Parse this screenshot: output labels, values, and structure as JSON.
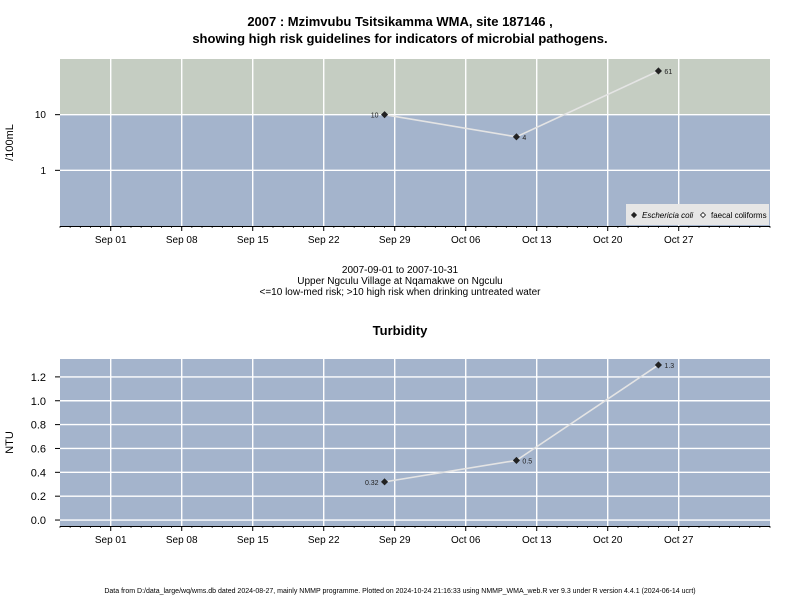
{
  "chart_data": [
    {
      "type": "line",
      "title_line1": "2007 : Mzimvubu Tsitsikamma WMA, site 187146 ,",
      "title_line2": "showing high risk guidelines for indicators of microbial pathogens.",
      "ylabel": "/100mL",
      "yscale": "log",
      "ylim": [
        0.1,
        100
      ],
      "ytick_labels": [
        "1",
        "10"
      ],
      "xlim": [
        "2007-08-27",
        "2007-11-05"
      ],
      "xtick_labels": [
        "Sep 01",
        "Sep 08",
        "Sep 15",
        "Sep 22",
        "Sep 29",
        "Oct 06",
        "Oct 13",
        "Oct 20",
        "Oct 27"
      ],
      "threshold": 10,
      "high_risk_color": "#c5cdc2",
      "low_risk_color": "#a4b4cc",
      "series": [
        {
          "name": "Eschericia coli",
          "marker": "filled-diamond",
          "x": [
            "2007-09-28",
            "2007-10-11",
            "2007-10-25"
          ],
          "y": [
            10,
            4,
            61
          ],
          "labels": [
            "10",
            "4",
            "61"
          ]
        },
        {
          "name": "faecal coliforms",
          "marker": "open-diamond",
          "x": [],
          "y": []
        }
      ],
      "legend_position": "bottom-right",
      "caption": [
        "2007-09-01 to 2007-10-31",
        "Upper Ngculu Village at Nqamakwe on Ngculu",
        "<=10 low-med risk; >10 high risk when drinking untreated water"
      ]
    },
    {
      "type": "line",
      "title": "Turbidity",
      "ylabel": "NTU",
      "ylim": [
        -0.05,
        1.35
      ],
      "yticks": [
        0,
        0.2,
        0.4,
        0.6,
        0.8,
        1,
        1.2
      ],
      "ytick_labels": [
        "0.0",
        "0.2",
        "0.4",
        "0.6",
        "0.8",
        "1.0",
        "1.2"
      ],
      "xlim": [
        "2007-08-27",
        "2007-11-05"
      ],
      "xtick_labels": [
        "Sep 01",
        "Sep 08",
        "Sep 15",
        "Sep 22",
        "Sep 29",
        "Oct 06",
        "Oct 13",
        "Oct 20",
        "Oct 27"
      ],
      "background_color": "#a4b4cc",
      "series": [
        {
          "x": [
            "2007-09-28",
            "2007-10-11",
            "2007-10-25"
          ],
          "y": [
            0.32,
            0.5,
            1.3
          ],
          "labels": [
            "0.32",
            "0.5",
            "1.3"
          ]
        }
      ]
    }
  ],
  "footer": "Data from D:/data_large/wq/wms.db dated 2024-08-27, mainly NMMP programme. Plotted on 2024-10-24 21:16:33 using NMMP_WMA_web.R ver 9.3 under R version 4.4.1 (2024-06-14 ucrt)"
}
